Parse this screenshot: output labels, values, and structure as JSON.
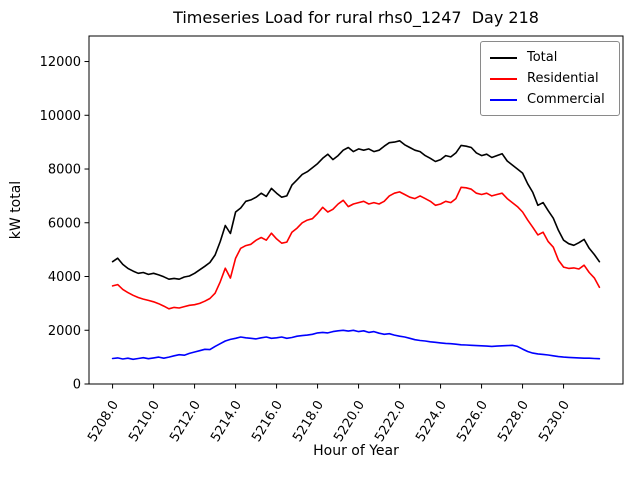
{
  "window": {
    "background": "#ffffff"
  },
  "chart_data": {
    "type": "line",
    "title": "Timeseries Load for rural rhs0_1247  Day 218",
    "xlabel": "Hour of Year",
    "ylabel": "kW total",
    "grid": false,
    "legend_position": "upper right",
    "xlim": [
      5206.85,
      5232.9
    ],
    "ylim": [
      0,
      12950
    ],
    "x_ticks": [
      5208,
      5210,
      5212,
      5214,
      5216,
      5218,
      5220,
      5222,
      5224,
      5226,
      5228,
      5230
    ],
    "x_tick_labels": [
      "5208.0",
      "5210.0",
      "5212.0",
      "5214.0",
      "5216.0",
      "5218.0",
      "5220.0",
      "5222.0",
      "5224.0",
      "5226.0",
      "5228.0",
      "5230.0"
    ],
    "x_tick_rotation_deg": 58,
    "y_ticks": [
      0,
      2000,
      4000,
      6000,
      8000,
      10000,
      12000
    ],
    "y_tick_labels": [
      "0",
      "2000",
      "4000",
      "6000",
      "8000",
      "10000",
      "12000"
    ],
    "x_start": 5208.0,
    "x_step": 0.25,
    "series": [
      {
        "name": "Total",
        "color": "#000000",
        "values": [
          4550,
          4680,
          4450,
          4300,
          4200,
          4120,
          4150,
          4080,
          4120,
          4060,
          3990,
          3900,
          3930,
          3900,
          3980,
          4020,
          4120,
          4250,
          4380,
          4520,
          4800,
          5300,
          5900,
          5600,
          6400,
          6550,
          6800,
          6850,
          6950,
          7100,
          6980,
          7280,
          7100,
          6950,
          7000,
          7400,
          7600,
          7800,
          7900,
          8050,
          8200,
          8400,
          8550,
          8350,
          8500,
          8700,
          8800,
          8650,
          8750,
          8700,
          8750,
          8650,
          8700,
          8850,
          8980,
          9000,
          9050,
          8900,
          8800,
          8700,
          8650,
          8500,
          8400,
          8280,
          8350,
          8500,
          8450,
          8600,
          8880,
          8850,
          8800,
          8600,
          8500,
          8550,
          8430,
          8500,
          8570,
          8300,
          8150,
          8000,
          7850,
          7450,
          7130,
          6650,
          6750,
          6450,
          6170,
          5720,
          5350,
          5220,
          5160,
          5260,
          5380,
          5050,
          4820,
          4550
        ]
      },
      {
        "name": "Residential",
        "color": "#ff0000",
        "values": [
          3650,
          3700,
          3520,
          3400,
          3300,
          3220,
          3160,
          3110,
          3060,
          2990,
          2900,
          2800,
          2850,
          2830,
          2880,
          2930,
          2950,
          3000,
          3080,
          3180,
          3380,
          3800,
          4310,
          3940,
          4680,
          5050,
          5150,
          5200,
          5350,
          5450,
          5350,
          5610,
          5400,
          5240,
          5280,
          5650,
          5800,
          6000,
          6100,
          6150,
          6350,
          6575,
          6400,
          6500,
          6700,
          6835,
          6600,
          6700,
          6750,
          6800,
          6700,
          6750,
          6700,
          6800,
          7000,
          7100,
          7150,
          7050,
          6950,
          6900,
          7000,
          6900,
          6800,
          6650,
          6700,
          6800,
          6750,
          6900,
          7320,
          7300,
          7250,
          7100,
          7050,
          7100,
          7000,
          7050,
          7100,
          6900,
          6750,
          6600,
          6400,
          6100,
          5830,
          5550,
          5650,
          5300,
          5090,
          4610,
          4350,
          4300,
          4320,
          4280,
          4420,
          4150,
          3950,
          3600
        ]
      },
      {
        "name": "Commercial",
        "color": "#0000ff",
        "values": [
          950,
          970,
          930,
          960,
          920,
          950,
          980,
          940,
          970,
          1000,
          960,
          1000,
          1050,
          1090,
          1070,
          1140,
          1190,
          1240,
          1290,
          1280,
          1400,
          1500,
          1600,
          1660,
          1700,
          1750,
          1720,
          1700,
          1680,
          1720,
          1750,
          1700,
          1720,
          1750,
          1700,
          1730,
          1780,
          1800,
          1820,
          1850,
          1900,
          1920,
          1900,
          1950,
          1980,
          2000,
          1970,
          2000,
          1950,
          1980,
          1920,
          1950,
          1890,
          1850,
          1870,
          1820,
          1780,
          1750,
          1700,
          1650,
          1620,
          1600,
          1570,
          1550,
          1530,
          1510,
          1500,
          1480,
          1460,
          1450,
          1440,
          1430,
          1420,
          1410,
          1400,
          1410,
          1420,
          1430,
          1440,
          1400,
          1300,
          1210,
          1150,
          1120,
          1100,
          1080,
          1050,
          1020,
          1000,
          990,
          980,
          970,
          960,
          960,
          950,
          940
        ]
      }
    ]
  }
}
